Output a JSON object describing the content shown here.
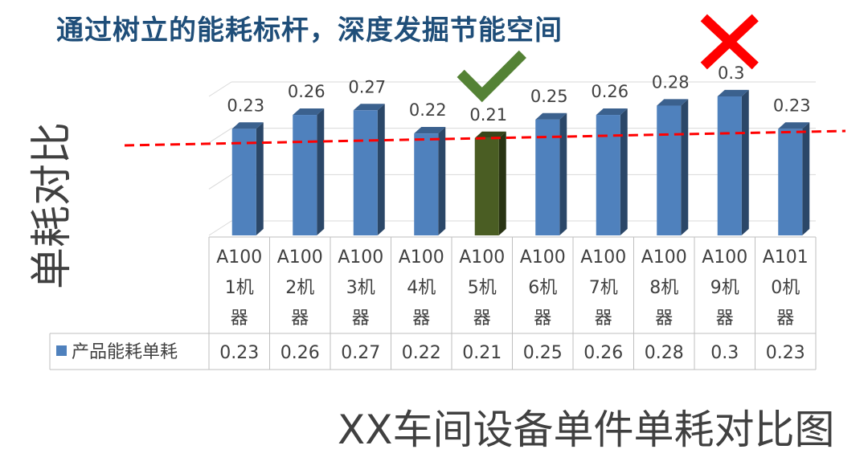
{
  "headline": "通过树立的能耗标杆，深度发掘节能空间",
  "caption": "XX车间设备单件单耗对比图",
  "chart_data": {
    "type": "bar",
    "ylabel": "单耗对比",
    "categories": [
      "A1001机器",
      "A1002机器",
      "A1003机器",
      "A1004机器",
      "A1005机器",
      "A1006机器",
      "A1007机器",
      "A1008机器",
      "A1009机器",
      "A1010机器"
    ],
    "category_lines": [
      [
        "A100",
        "1机",
        "器"
      ],
      [
        "A100",
        "2机",
        "器"
      ],
      [
        "A100",
        "3机",
        "器"
      ],
      [
        "A100",
        "4机",
        "器"
      ],
      [
        "A100",
        "5机",
        "器"
      ],
      [
        "A100",
        "6机",
        "器"
      ],
      [
        "A100",
        "7机",
        "器"
      ],
      [
        "A100",
        "8机",
        "器"
      ],
      [
        "A100",
        "9机",
        "器"
      ],
      [
        "A101",
        "0机",
        "器"
      ]
    ],
    "series": [
      {
        "name": "产品能耗单耗",
        "values": [
          0.23,
          0.26,
          0.27,
          0.22,
          0.21,
          0.25,
          0.26,
          0.28,
          0.3,
          0.23
        ],
        "color": "#4f81bd"
      }
    ],
    "data_labels": [
      "0.23",
      "0.26",
      "0.27",
      "0.22",
      "0.21",
      "0.25",
      "0.26",
      "0.28",
      "0.3",
      "0.23"
    ],
    "table_values": [
      "0.23",
      "0.26",
      "0.27",
      "0.22",
      "0.21",
      "0.25",
      "0.26",
      "0.28",
      "0.3",
      "0.23"
    ],
    "benchmark_index": 4,
    "benchmark_color": "#4a5d23",
    "worst_index": 8,
    "trend_line": {
      "style": "dashed",
      "color": "#ff0000"
    },
    "ylim": [
      0,
      0.3
    ],
    "grid": true,
    "data_table": true,
    "marks": {
      "check_color": "#548235",
      "cross_color": "#ff0000"
    }
  }
}
